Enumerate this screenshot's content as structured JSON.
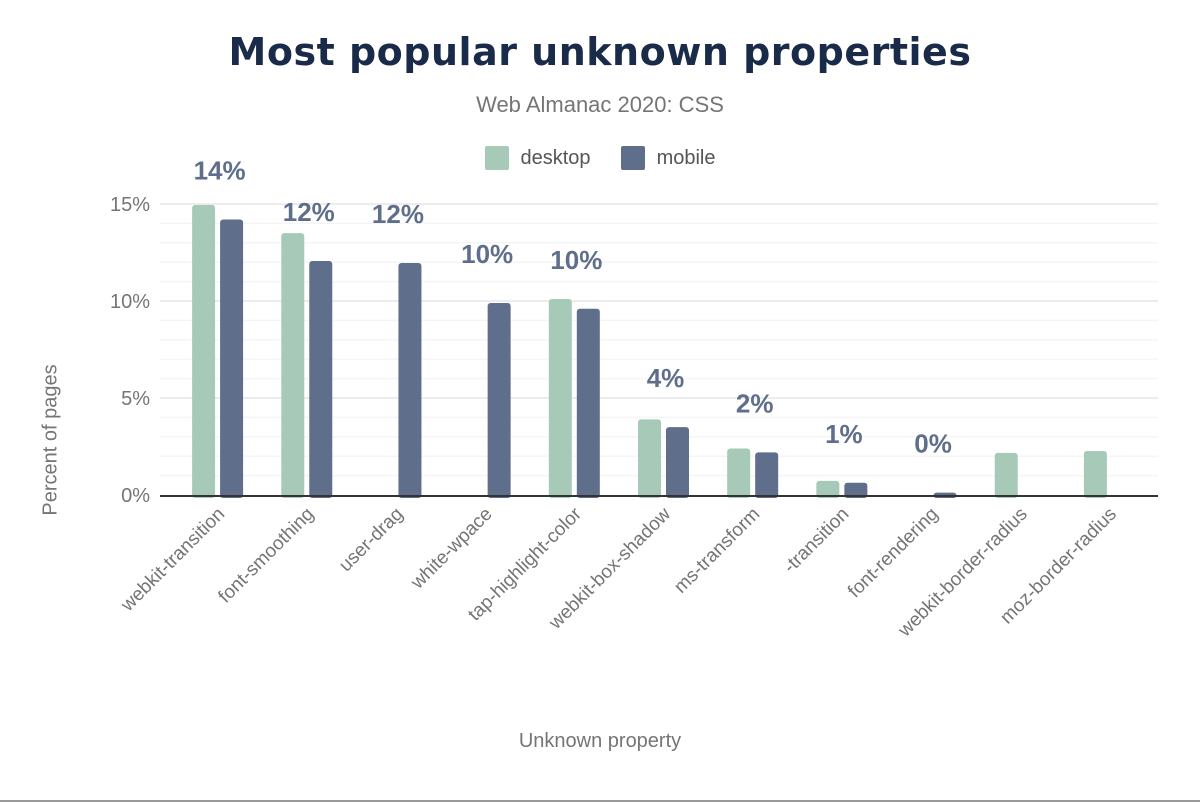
{
  "chart_data": {
    "type": "bar",
    "title": "Most popular unknown properties",
    "subtitle": "Web Almanac 2020: CSS",
    "xlabel": "Unknown property",
    "ylabel": "Percent of pages",
    "ylim": [
      0,
      15
    ],
    "yticks": [
      "0%",
      "5%",
      "10%",
      "15%"
    ],
    "grid": true,
    "legend_placement": "top",
    "categories": [
      "webkit-transition",
      "font-smoothing",
      "user-drag",
      "white-wpace",
      "tap-highlight-color",
      "webkit-box-shadow",
      "ms-transform",
      "-transition",
      "font-rendering",
      "webkit-border-radius",
      "moz-border-radius"
    ],
    "series": [
      {
        "name": "desktop",
        "color": "#a6c9b8",
        "values": [
          14.95,
          13.5,
          null,
          null,
          10.1,
          3.9,
          2.4,
          0.73,
          null,
          2.17,
          2.27
        ]
      },
      {
        "name": "mobile",
        "color": "#5f6f8b",
        "values": [
          14.2,
          12.06,
          11.96,
          9.9,
          9.6,
          3.5,
          2.2,
          0.63,
          0.12,
          null,
          null
        ]
      }
    ],
    "data_labels": [
      "14%",
      "12%",
      "12%",
      "10%",
      "10%",
      "4%",
      "2%",
      "1%",
      "0%",
      null,
      null
    ]
  }
}
